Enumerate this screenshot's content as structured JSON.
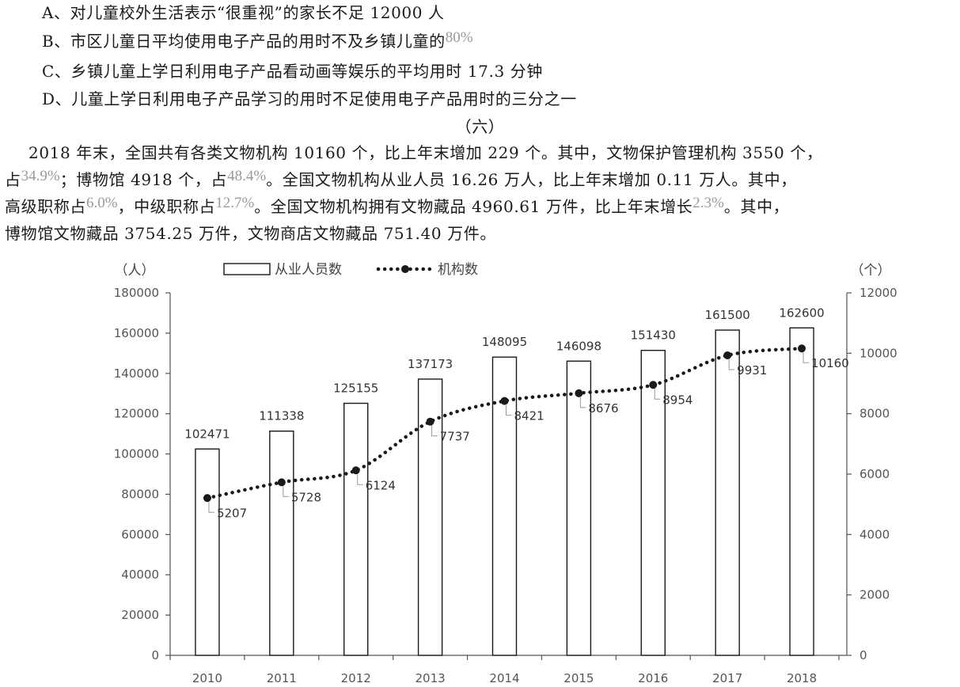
{
  "options": {
    "a": "A、对儿童校外生活表示“很重视”的家长不足 12000 人",
    "b_text": "B、市区儿童日平均使用电子产品的用时不及乡镇儿童的",
    "b_pct": "80%",
    "c": "C、乡镇儿童上学日利用电子产品看动画等娱乐的平均用时 17.3 分钟",
    "d": "D、儿童上学日利用电子产品学习的用时不足使用电子产品用时的三分之一"
  },
  "section": {
    "heading": "（六）",
    "p1_text": "2018 年末，全国共有各类文物机构 10160 个，比上年末增加 229 个。其中，文物保护管理机构 3550 个，",
    "p2_a": "占",
    "p2_pct1": "34.9%",
    "p2_b": "；博物馆 4918 个，占",
    "p2_pct2": "48.4%",
    "p2_c": "。全国文物机构从业人员 16.26 万人，比上年末增加 0.11 万人。其中，",
    "p3_a": "高级职称占",
    "p3_pct1": "6.0%",
    "p3_b": "，中级职称占",
    "p3_pct2": "12.7%",
    "p3_c": "。全国文物机构拥有文物藏品 4960.61 万件，比上年末增长",
    "p3_pct3": "2.3%",
    "p3_d": "。其中，",
    "p4_text": "博物馆文物藏品 3754.25 万件，文物商店文物藏品 751.40 万件。"
  },
  "chart_data": {
    "type": "bar",
    "categories": [
      "2010",
      "2011",
      "2012",
      "2013",
      "2014",
      "2015",
      "2016",
      "2017",
      "2018"
    ],
    "series": [
      {
        "name": "从业人员数",
        "type": "bar",
        "axis": "left",
        "values": [
          102471,
          111338,
          125155,
          137173,
          148095,
          146098,
          151430,
          161500,
          162600
        ]
      },
      {
        "name": "机构数",
        "type": "line",
        "axis": "right",
        "values": [
          5207,
          5728,
          6124,
          7737,
          8421,
          8676,
          8954,
          9931,
          10160
        ]
      }
    ],
    "left_unit": "（人）",
    "right_unit": "（个）",
    "ylim_left": [
      0,
      180000
    ],
    "yticks_left": [
      0,
      20000,
      40000,
      60000,
      80000,
      100000,
      120000,
      140000,
      160000,
      180000
    ],
    "ylim_right": [
      0,
      12000
    ],
    "yticks_right": [
      0,
      2000,
      4000,
      6000,
      8000,
      10000,
      12000
    ],
    "legend_position": "top",
    "grid": false,
    "colors": {
      "bar_fill": "#ffffff",
      "bar_stroke": "#1a1a1a",
      "line": "#1a1a1a",
      "axis": "#555555"
    }
  }
}
